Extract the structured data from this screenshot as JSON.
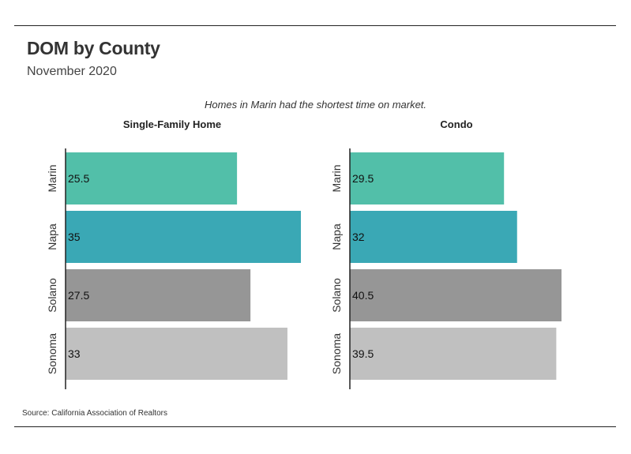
{
  "header": {
    "title": "DOM by County",
    "subtitle": "November 2020",
    "annotation": "Homes in Marin had the shortest time on market."
  },
  "footer": {
    "source": "Source:  California Association of Realtors"
  },
  "colors": {
    "Marin": "#52bfa9",
    "Napa": "#3aa8b5",
    "Solano": "#969696",
    "Sonoma": "#c0c0c0",
    "axis": "#222222"
  },
  "chart_data": [
    {
      "type": "bar",
      "orientation": "horizontal",
      "title": "Single-Family Home",
      "categories": [
        "Marin",
        "Napa",
        "Solano",
        "Sonoma"
      ],
      "values": [
        25.5,
        35,
        27.5,
        33
      ],
      "value_labels": [
        "25.5",
        "35",
        "27.5",
        "33"
      ],
      "xlim": [
        0,
        35
      ]
    },
    {
      "type": "bar",
      "orientation": "horizontal",
      "title": "Condo",
      "categories": [
        "Marin",
        "Napa",
        "Solano",
        "Sonoma"
      ],
      "values": [
        29.5,
        32,
        40.5,
        39.5
      ],
      "value_labels": [
        "29.5",
        "32",
        "40.5",
        "39.5"
      ],
      "xlim": [
        0,
        40.5
      ]
    }
  ]
}
